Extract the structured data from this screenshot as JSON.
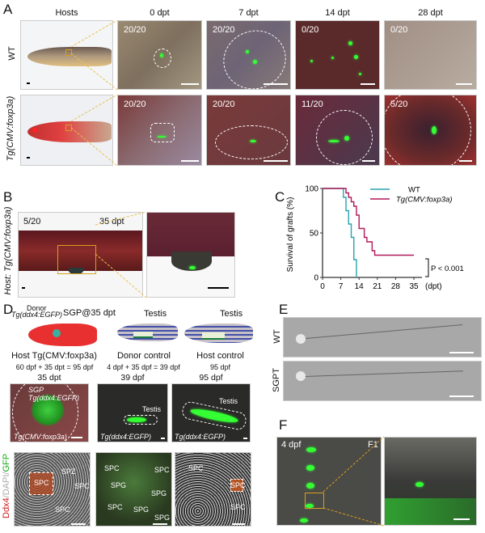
{
  "panelA": {
    "label": "A",
    "columns": [
      "Hosts",
      "0 dpt",
      "7 dpt",
      "14 dpt",
      "28 dpt"
    ],
    "rows": [
      {
        "name": "WT",
        "counts": [
          "20/20",
          "20/20",
          "0/20",
          "0/20"
        ]
      },
      {
        "name": "Tg(CMV:foxp3a)",
        "counts": [
          "20/20",
          "20/20",
          "11/20",
          "5/20"
        ]
      }
    ]
  },
  "panelB": {
    "label": "B",
    "side_label": "Host: Tg(CMV:foxp3a)",
    "count": "5/20",
    "time": "35 dpt"
  },
  "panelC": {
    "label": "C"
  },
  "chart_data": {
    "type": "line",
    "subtype": "kaplan-meier step",
    "ylabel": "Survival of grafts (%)",
    "xlabel": "(dpt)",
    "xlim": [
      0,
      35
    ],
    "ylim": [
      0,
      100
    ],
    "xticks": [
      0,
      7,
      14,
      21,
      28,
      35
    ],
    "yticks": [
      0,
      50,
      100
    ],
    "legend_position": "top-right",
    "annotation": "P < 0.001",
    "series": [
      {
        "name": "WT",
        "color": "#2aa3ab",
        "x": [
          0,
          8,
          9,
          10,
          11,
          12,
          13
        ],
        "y": [
          100,
          90,
          75,
          60,
          45,
          20,
          0
        ]
      },
      {
        "name": "Tg(CMV:foxp3a)",
        "color": "#b0195a",
        "x": [
          0,
          9,
          10,
          11,
          12,
          13,
          14,
          16,
          17,
          19,
          20,
          35
        ],
        "y": [
          100,
          95,
          90,
          85,
          80,
          70,
          55,
          45,
          40,
          30,
          25,
          25
        ]
      }
    ]
  },
  "panelD": {
    "label": "D",
    "donor": "Donor",
    "donor_line": "Tg(ddx4:EGFP)",
    "sgp": "SGP@35 dpt",
    "testis": "Testis",
    "groups": [
      {
        "title": "Host Tg(CMV:foxp3a)",
        "sub": "60 dpf + 35 dpt = 95 dpf",
        "time": "35 dpt",
        "img_top": "SGP Tg(ddx4:EGFP)",
        "img_bottom": "Tg(CMV:foxp3a)"
      },
      {
        "title": "Donor control",
        "sub": "4 dpf + 35 dpf = 39 dpf",
        "time": "39 dpf",
        "img_top": "Testis",
        "img_bottom": "Tg(ddx4:EGFP)"
      },
      {
        "title": "Host control",
        "sub": "95 dpf",
        "time": "95 dpf",
        "img_top": "Testis",
        "img_bottom": "Tg(ddx4:EGFP)"
      }
    ],
    "stain": {
      "ddx4": "Ddx4",
      "dapi": "/DAPI/",
      "gfp": "GFP"
    },
    "cell_labels": {
      "spz": "SPZ",
      "spc": "SPC",
      "spg": "SPG"
    }
  },
  "panelE": {
    "label": "E",
    "rows": [
      "WT",
      "SGPT"
    ]
  },
  "panelF": {
    "label": "F",
    "time": "4 dpf",
    "gen": "F1"
  },
  "colors": {
    "wt": "#2aa3ab",
    "tg": "#b0195a",
    "zoom_box": "#d8a020",
    "green": "#33ff33"
  }
}
